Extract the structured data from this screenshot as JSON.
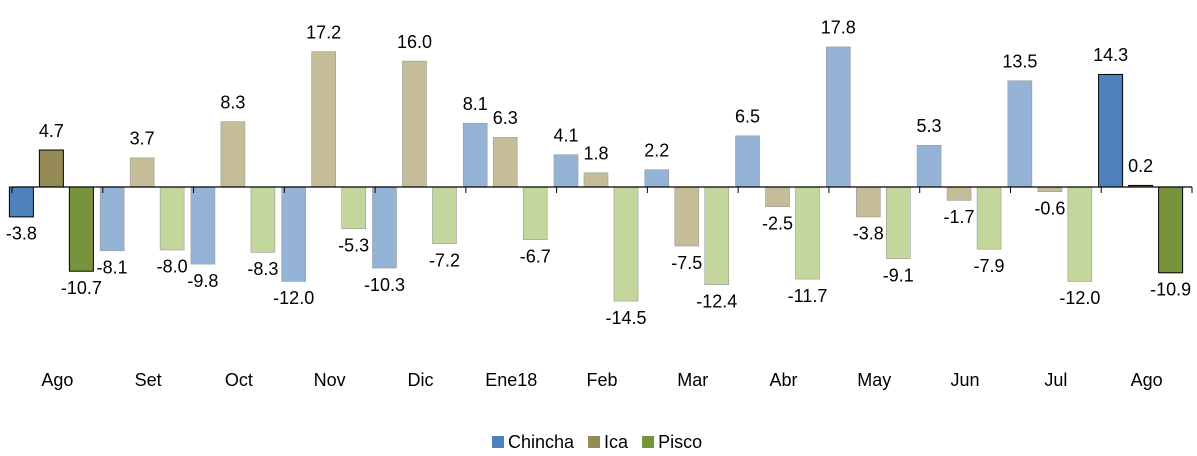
{
  "chart_data": {
    "type": "bar",
    "categories": [
      "Ago",
      "Set",
      "Oct",
      "Nov",
      "Dic",
      "Ene18",
      "Feb",
      "Mar",
      "Abr",
      "May",
      "Jun",
      "Jul",
      "Ago"
    ],
    "series": [
      {
        "name": "Chincha",
        "color": "#4f81bd",
        "colors": [
          "#4f81bd",
          "#95b3d7",
          "#95b3d7",
          "#95b3d7",
          "#95b3d7",
          "#95b3d7",
          "#95b3d7",
          "#95b3d7",
          "#95b3d7",
          "#95b3d7",
          "#95b3d7",
          "#95b3d7",
          "#4f81bd"
        ],
        "values": [
          -3.8,
          -8.1,
          -9.8,
          -12.0,
          -10.3,
          8.1,
          4.1,
          2.2,
          6.5,
          17.8,
          5.3,
          13.5,
          14.3
        ],
        "value_labels": [
          "-3.8",
          "-8.1",
          "-9.8",
          "-12.0",
          "-10.3",
          "8.1",
          "4.1",
          "2.2",
          "6.5",
          "17.8",
          "5.3",
          "13.5",
          "14.3"
        ]
      },
      {
        "name": "Ica",
        "color": "#948a54",
        "colors": [
          "#948a54",
          "#c4bd97",
          "#c4bd97",
          "#c4bd97",
          "#c4bd97",
          "#c4bd97",
          "#c4bd97",
          "#c4bd97",
          "#c4bd97",
          "#c4bd97",
          "#c4bd97",
          "#c4bd97",
          "#948a54"
        ],
        "values": [
          4.7,
          3.7,
          8.3,
          17.2,
          16.0,
          6.3,
          1.8,
          -7.5,
          -2.5,
          -3.8,
          -1.7,
          -0.6,
          0.2
        ],
        "value_labels": [
          "4.7",
          "3.7",
          "8.3",
          "17.2",
          "16.0",
          "6.3",
          "1.8",
          "-7.5",
          "-2.5",
          "-3.8",
          "-1.7",
          "-0.6",
          "0.2"
        ]
      },
      {
        "name": "Pisco",
        "color": "#77933c",
        "colors": [
          "#77933c",
          "#c3d69b",
          "#c3d69b",
          "#c3d69b",
          "#c3d69b",
          "#c3d69b",
          "#c3d69b",
          "#c3d69b",
          "#c3d69b",
          "#c3d69b",
          "#c3d69b",
          "#c3d69b",
          "#77933c"
        ],
        "values": [
          -10.7,
          -8.0,
          -8.3,
          -5.3,
          -7.2,
          -6.7,
          -14.5,
          -12.4,
          -11.7,
          -9.1,
          -7.9,
          -12.0,
          -10.9
        ],
        "value_labels": [
          "-10.7",
          "-8.0",
          "-8.3",
          "-5.3",
          "-7.2",
          "-6.7",
          "-14.5",
          "-12.4",
          "-11.7",
          "-9.1",
          "-7.9",
          "-12.0",
          "-10.9"
        ]
      }
    ]
  }
}
